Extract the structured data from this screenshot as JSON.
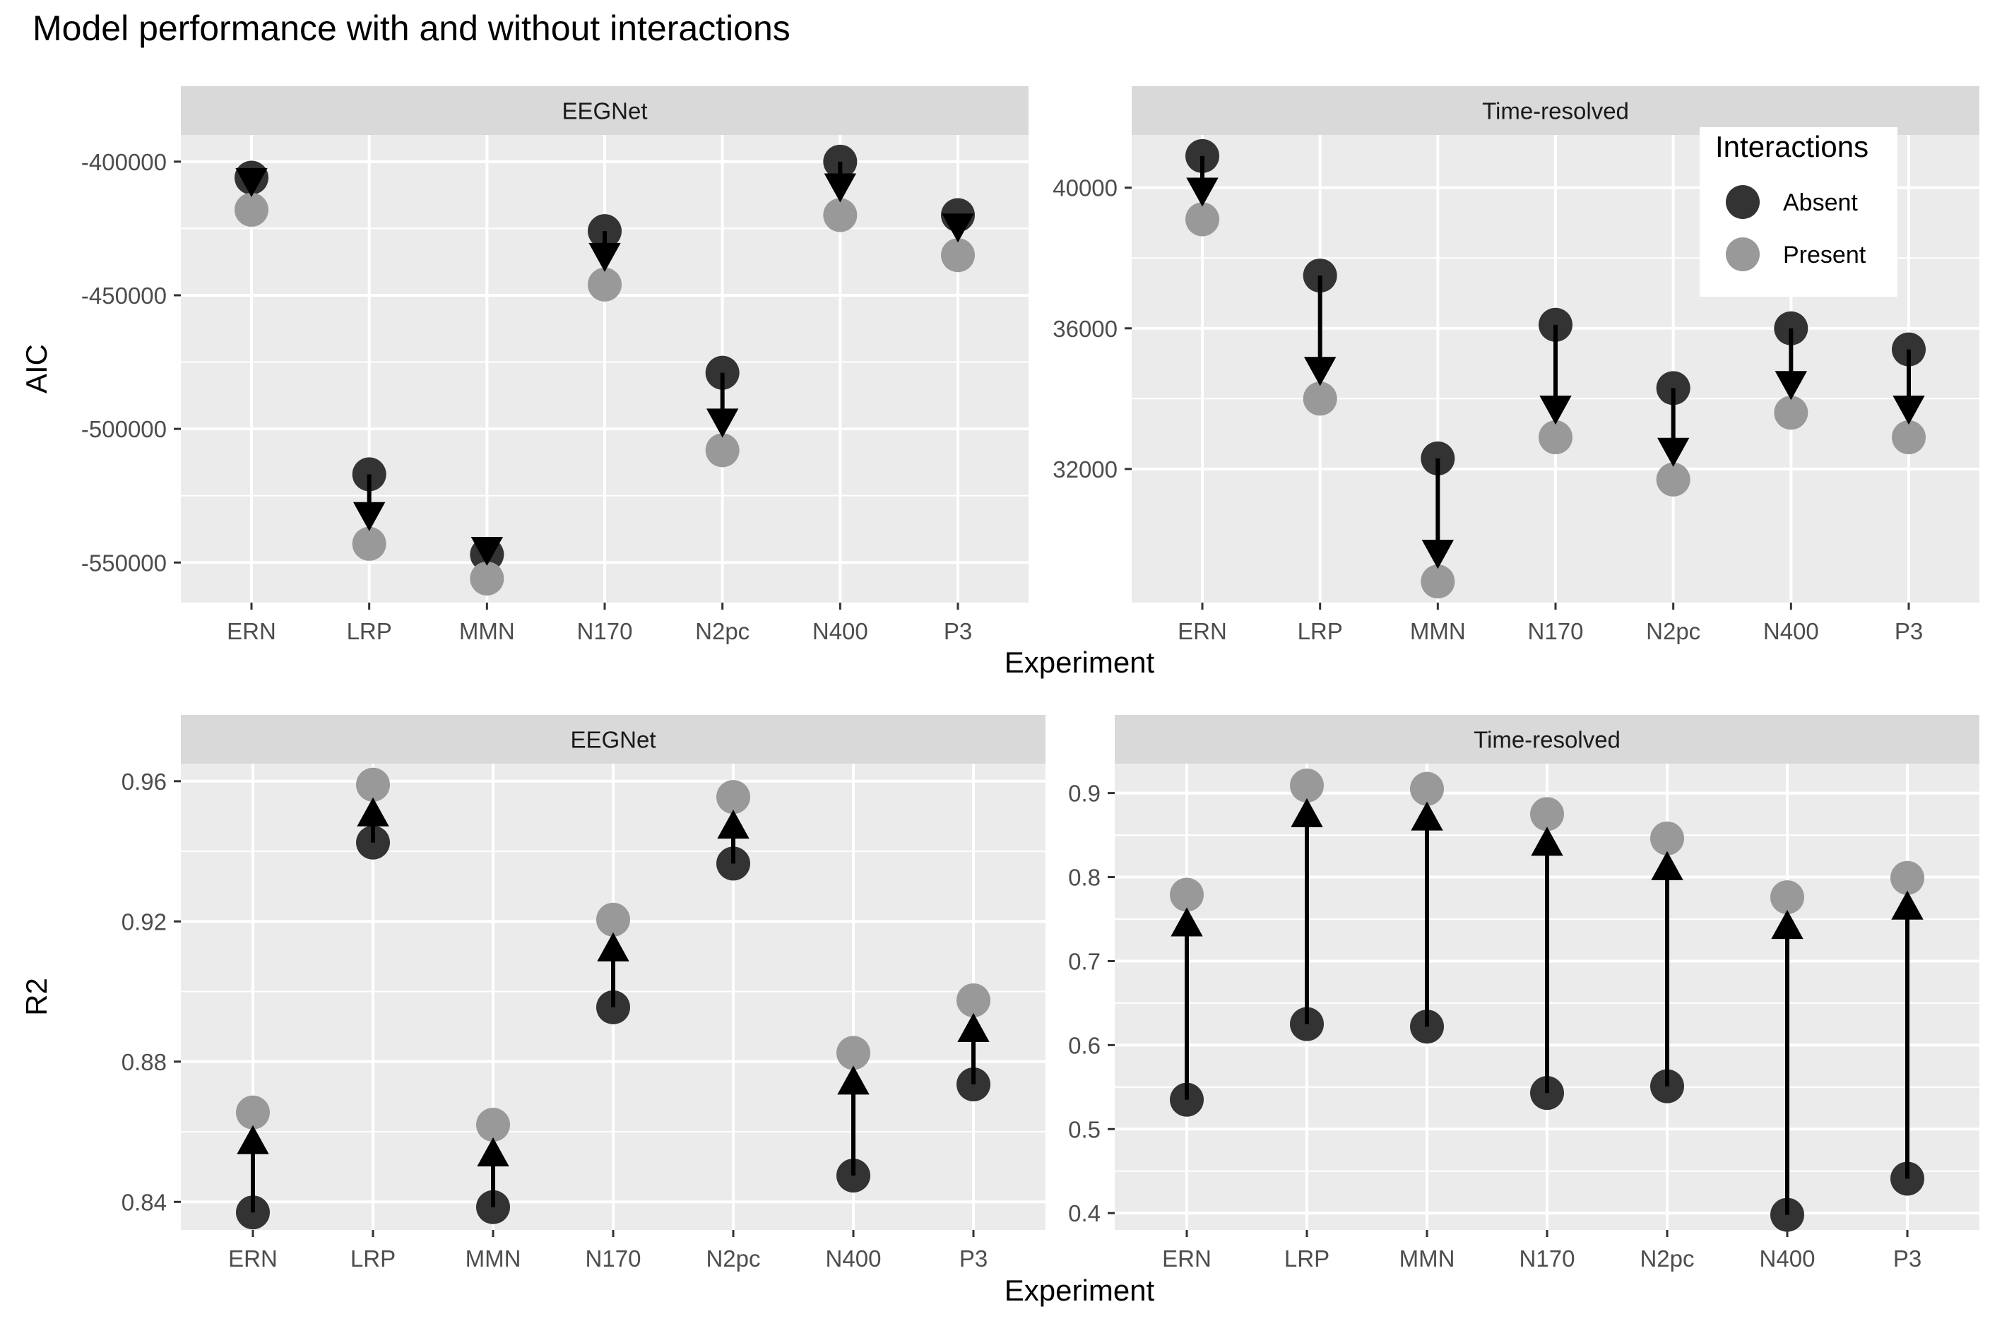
{
  "title": "Model performance with and without interactions",
  "x_axis_title": "Experiment",
  "legend": {
    "title": "Interactions",
    "entries": [
      {
        "label": "Absent",
        "color": "#333333"
      },
      {
        "label": "Present",
        "color": "#999999"
      }
    ]
  },
  "chart_data": [
    {
      "type": "scatter",
      "panel": "EEGNet",
      "ylabel": "AIC",
      "categories": [
        "ERN",
        "LRP",
        "MMN",
        "N170",
        "N2pc",
        "N400",
        "P3"
      ],
      "ylim": [
        -565000,
        -390000
      ],
      "yticks": [
        -400000,
        -450000,
        -500000,
        -550000
      ],
      "ytick_labels": [
        "-400000",
        "-450000",
        "-500000",
        "-550000"
      ],
      "series": [
        {
          "name": "Absent",
          "values": [
            -406000,
            -517000,
            -547000,
            -426000,
            -479000,
            -400000,
            -420000
          ]
        },
        {
          "name": "Present",
          "values": [
            -418000,
            -543000,
            -556000,
            -446000,
            -508000,
            -420000,
            -435000
          ]
        }
      ],
      "grid": true
    },
    {
      "type": "scatter",
      "panel": "Time-resolved",
      "ylabel": "",
      "categories": [
        "ERN",
        "LRP",
        "MMN",
        "N170",
        "N2pc",
        "N400",
        "P3"
      ],
      "ylim": [
        28200,
        41500
      ],
      "yticks": [
        40000,
        36000,
        32000
      ],
      "ytick_labels": [
        "40000",
        "36000",
        "32000"
      ],
      "series": [
        {
          "name": "Absent",
          "values": [
            40900,
            37500,
            32300,
            36100,
            34300,
            36000,
            35400
          ]
        },
        {
          "name": "Present",
          "values": [
            39100,
            34000,
            28800,
            32900,
            31700,
            33600,
            32900
          ]
        }
      ],
      "grid": true,
      "legend_position": "top-right"
    },
    {
      "type": "scatter",
      "panel": "EEGNet",
      "ylabel": "R2",
      "categories": [
        "ERN",
        "LRP",
        "MMN",
        "N170",
        "N2pc",
        "N400",
        "P3"
      ],
      "ylim": [
        0.832,
        0.965
      ],
      "yticks": [
        0.96,
        0.92,
        0.88,
        0.84
      ],
      "ytick_labels": [
        "0.96",
        "0.92",
        "0.88",
        "0.84"
      ],
      "series": [
        {
          "name": "Absent",
          "values": [
            0.837,
            0.9425,
            0.8385,
            0.8955,
            0.9365,
            0.8475,
            0.8735
          ]
        },
        {
          "name": "Present",
          "values": [
            0.8655,
            0.959,
            0.862,
            0.9205,
            0.9555,
            0.8825,
            0.8975
          ]
        }
      ],
      "grid": true
    },
    {
      "type": "scatter",
      "panel": "Time-resolved",
      "ylabel": "",
      "categories": [
        "ERN",
        "LRP",
        "MMN",
        "N170",
        "N2pc",
        "N400",
        "P3"
      ],
      "ylim": [
        0.38,
        0.935
      ],
      "yticks": [
        0.9,
        0.8,
        0.7,
        0.6,
        0.5,
        0.4
      ],
      "ytick_labels": [
        "0.9",
        "0.8",
        "0.7",
        "0.6",
        "0.5",
        "0.4"
      ],
      "series": [
        {
          "name": "Absent",
          "values": [
            0.535,
            0.625,
            0.622,
            0.543,
            0.551,
            0.398,
            0.441
          ]
        },
        {
          "name": "Present",
          "values": [
            0.779,
            0.909,
            0.905,
            0.875,
            0.846,
            0.776,
            0.799
          ]
        }
      ],
      "grid": true
    }
  ]
}
